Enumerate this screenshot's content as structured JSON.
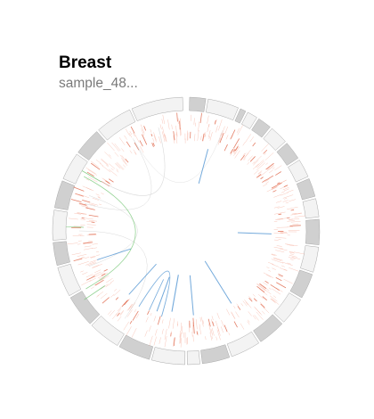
{
  "header": {
    "title": "Breast",
    "subtitle": "sample_48..."
  },
  "colors": {
    "ideogram_light": "#f3f3f3",
    "ideogram_dark": "#d0d0d0",
    "ideogram_stroke": "#aaaaaa",
    "mutation_red": "#f4a18c",
    "mutation_red_strong": "#e06a4e",
    "link_blue": "#5b9bd5",
    "link_green": "#7cc97c",
    "link_gray": "#cfcfcf"
  }
}
